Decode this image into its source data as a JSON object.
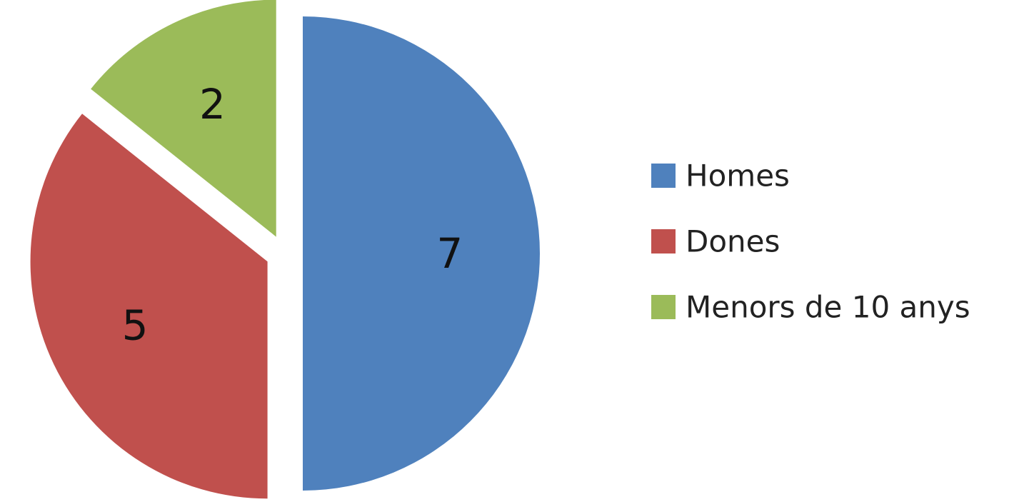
{
  "chart_data": {
    "type": "pie",
    "categories": [
      "Homes",
      "Dones",
      "Menors de 10 anys"
    ],
    "values": [
      7,
      5,
      2
    ],
    "colors": [
      "#4f81bd",
      "#c0504d",
      "#9bbb59"
    ],
    "exploded": true,
    "data_labels": [
      "7",
      "5",
      "2"
    ],
    "legend": {
      "position": "right",
      "entries": [
        "Homes",
        "Dones",
        "Menors de 10 anys"
      ]
    }
  }
}
